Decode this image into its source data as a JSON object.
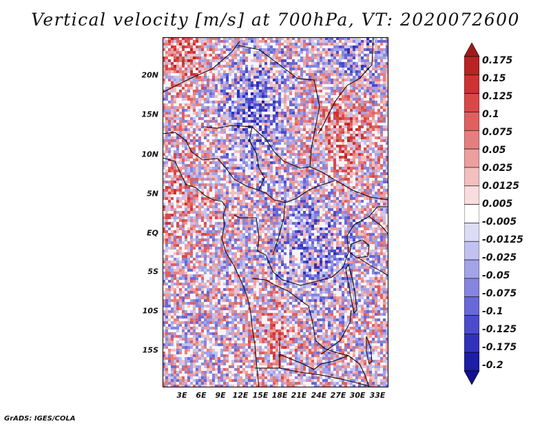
{
  "title": "Vertical velocity [m/s] at 700hPa, VT: 2020072600",
  "footer": "GrADS: IGES/COLA",
  "lat_labels": [
    "20N",
    "15N",
    "10N",
    "5N",
    "EQ",
    "5S",
    "10S",
    "15S"
  ],
  "lon_labels": [
    "3E",
    "6E",
    "9E",
    "12E",
    "15E",
    "18E",
    "21E",
    "24E",
    "27E",
    "30E",
    "33E"
  ],
  "colorbar": {
    "levels": [
      "0.175",
      "0.15",
      "0.125",
      "0.1",
      "0.075",
      "0.05",
      "0.025",
      "0.0125",
      "0.005",
      "-0.005",
      "-0.0125",
      "-0.025",
      "-0.05",
      "-0.075",
      "-0.1",
      "-0.125",
      "-0.175",
      "-0.2"
    ],
    "colors": [
      "#a11a1a",
      "#b82424",
      "#cc3333",
      "#d94848",
      "#e06060",
      "#e57f7f",
      "#ed9e9e",
      "#f3bfbf",
      "#f9dddd",
      "#ffffff",
      "#dcdcf6",
      "#c2c2f0",
      "#a3a3e8",
      "#8585df",
      "#6868d6",
      "#4b4bcc",
      "#3131bb",
      "#1d1da6",
      "#11118c"
    ]
  }
}
